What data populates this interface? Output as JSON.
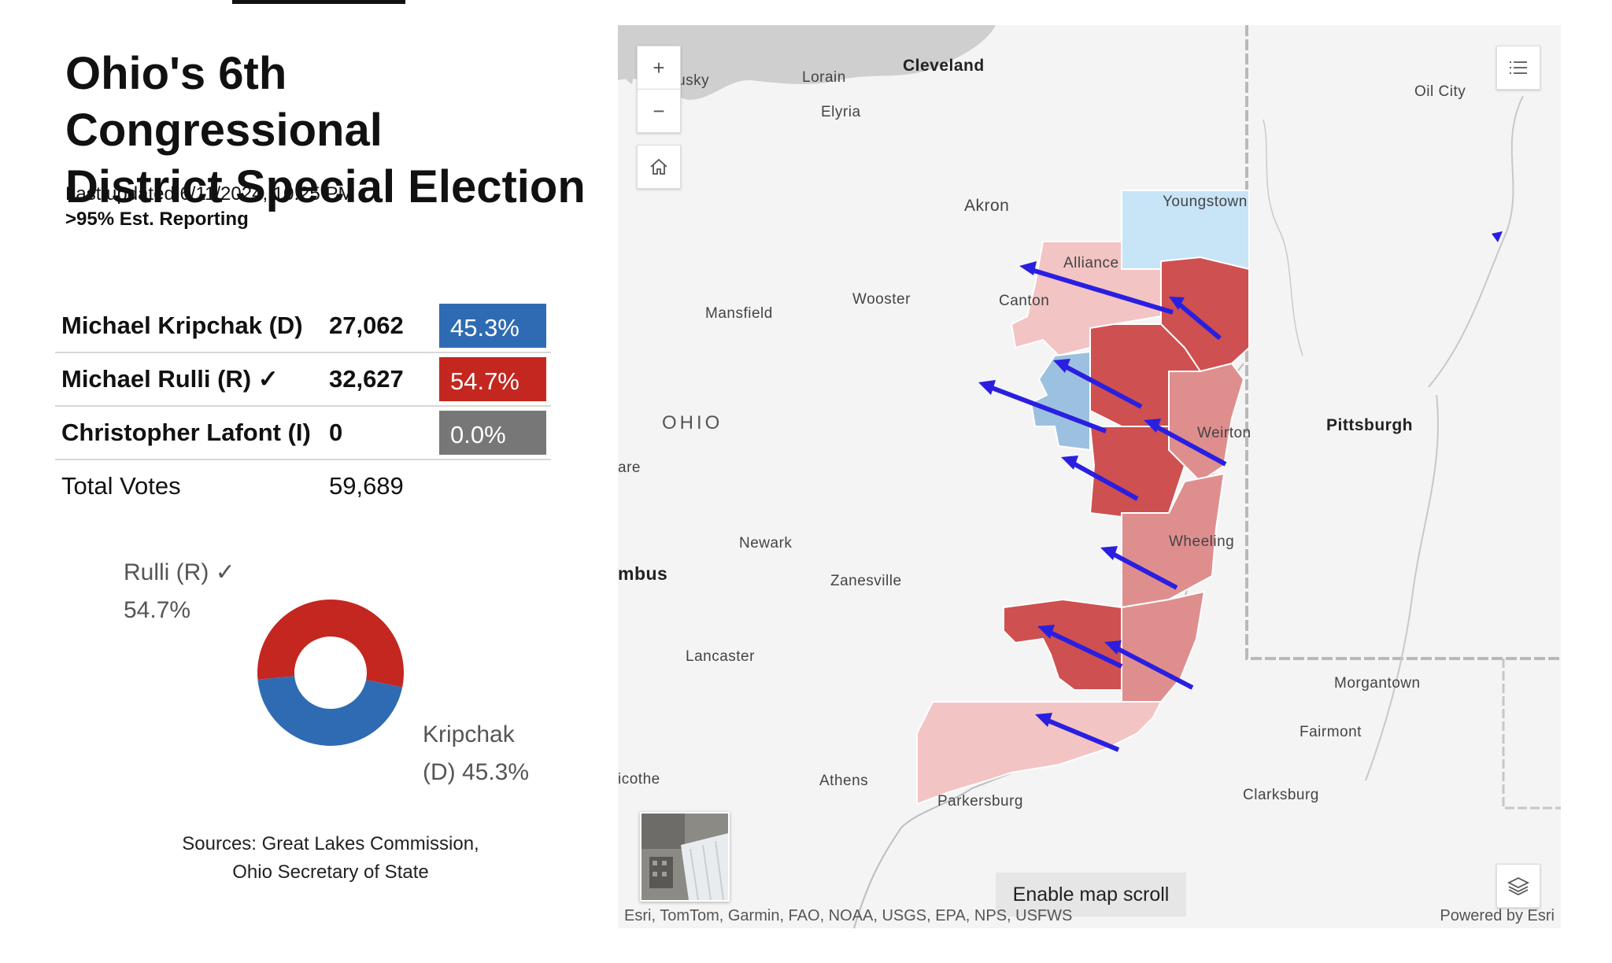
{
  "header": {
    "title_line1": "Ohio's 6th Congressional",
    "title_line2": "District Special Election",
    "last_updated": "Last updated 6/11/2024, 10:25 PM",
    "reporting": ">95% Est. Reporting"
  },
  "results": {
    "rows": [
      {
        "name": "Michael Kripchak (D)",
        "votes": "27,062",
        "pct": "45.3%",
        "color": "#2f6bb3"
      },
      {
        "name": "Michael Rulli (R) ✓",
        "votes": "32,627",
        "pct": "54.7%",
        "color": "#c4271f"
      },
      {
        "name": "Christopher Lafont (I)",
        "votes": "0",
        "pct": "0.0%",
        "color": "#777777"
      }
    ],
    "total_label": "Total Votes",
    "total_votes": "59,689"
  },
  "donut": {
    "rulli_label_1": "Rulli (R) ✓",
    "rulli_label_2": "54.7%",
    "kripchak_label_1": "Kripchak",
    "kripchak_label_2": "(D) 45.3%",
    "slices": [
      {
        "name": "Rulli (R)",
        "value": 54.7,
        "color": "#c4271f"
      },
      {
        "name": "Kripchak (D)",
        "value": 45.3,
        "color": "#2f6bb3"
      }
    ]
  },
  "sources": {
    "line1": "Sources: Great Lakes Commission,",
    "line2": "Ohio Secretary of State"
  },
  "map": {
    "controls": {
      "zoom_in": "+",
      "zoom_out": "−"
    },
    "enable_scroll": "Enable map scroll",
    "attribution": "Esri, TomTom, Garmin, FAO, NOAA, USGS, EPA, NPS, USFWS",
    "powered_by": "Powered by Esri",
    "state_label": "OHIO",
    "cities": {
      "sandusky": "dusky",
      "lorain": "Lorain",
      "cleveland": "Cleveland",
      "elyria": "Elyria",
      "akron": "Akron",
      "youngstown": "Youngstown",
      "oil_city": "Oil City",
      "alliance": "Alliance",
      "canton": "Canton",
      "wooster": "Wooster",
      "mansfield": "Mansfield",
      "weirton": "Weirton",
      "pittsburgh": "Pittsburgh",
      "delaware": "are",
      "newark": "Newark",
      "columbus": "mbus",
      "zanesville": "Zanesville",
      "wheeling": "Wheeling",
      "lancaster": "Lancaster",
      "morgantown": "Morgantown",
      "fairmont": "Fairmont",
      "chillicothe": "icothe",
      "athens": "Athens",
      "parkersburg": "Parkersburg",
      "clarksburg": "Clarksburg"
    },
    "colors": {
      "strong_r": "#cf5050",
      "mid_r": "#df8e8e",
      "light_r": "#f3c4c4",
      "light_d": "#c8e4f7",
      "mid_d": "#9cc1e0",
      "arrow": "#2a1fe0"
    }
  }
}
